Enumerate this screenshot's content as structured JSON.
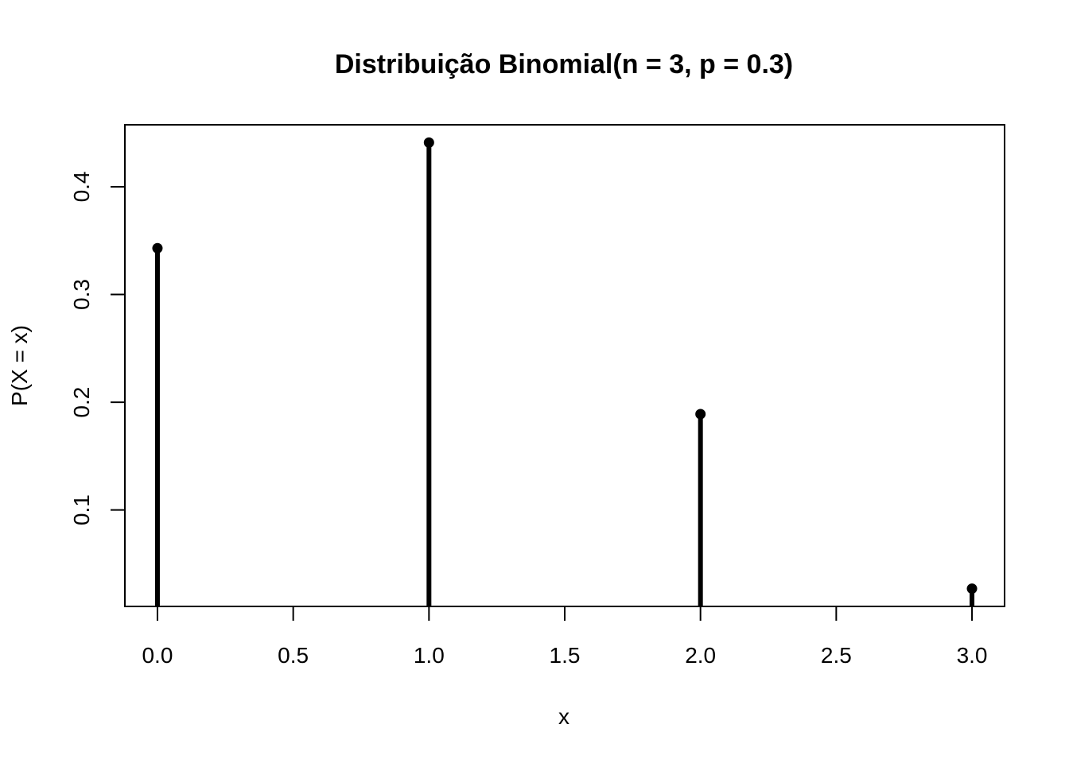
{
  "chart_data": {
    "type": "stem",
    "title": "Distribuição Binomial(n = 3, p = 0.3)",
    "xlabel": "x",
    "ylabel": "P(X = x)",
    "x": [
      0,
      1,
      2,
      3
    ],
    "values": [
      0.343,
      0.441,
      0.189,
      0.027
    ],
    "xlim": [
      -0.12,
      3.12
    ],
    "ylim": [
      0.0105,
      0.4575
    ],
    "x_ticks": [
      {
        "value": 0.0,
        "label": "0.0"
      },
      {
        "value": 0.5,
        "label": "0.5"
      },
      {
        "value": 1.0,
        "label": "1.0"
      },
      {
        "value": 1.5,
        "label": "1.5"
      },
      {
        "value": 2.0,
        "label": "2.0"
      },
      {
        "value": 2.5,
        "label": "2.5"
      },
      {
        "value": 3.0,
        "label": "3.0"
      }
    ],
    "y_ticks": [
      {
        "value": 0.1,
        "label": "0.1"
      },
      {
        "value": 0.2,
        "label": "0.2"
      },
      {
        "value": 0.3,
        "label": "0.3"
      },
      {
        "value": 0.4,
        "label": "0.4"
      }
    ],
    "grid": false,
    "color": "#000000"
  }
}
